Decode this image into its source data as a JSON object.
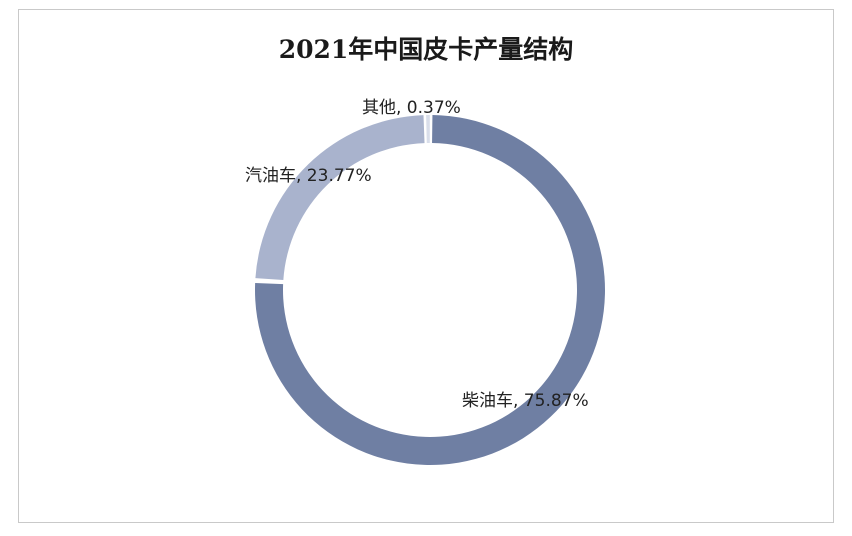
{
  "chart_data": {
    "type": "pie",
    "title": "2021年中国皮卡产量结构",
    "donut": true,
    "slices": [
      {
        "label": "柴油车",
        "value": 75.87,
        "display": "柴油车, 75.87%",
        "color": "#6f7fa3"
      },
      {
        "label": "汽油车",
        "value": 23.77,
        "display": "汽油车, 23.77%",
        "color": "#a9b3cd"
      },
      {
        "label": "其他",
        "value": 0.37,
        "display": "其他, 0.37%",
        "color": "#d9deea"
      }
    ],
    "legend": "none",
    "grid": false
  }
}
